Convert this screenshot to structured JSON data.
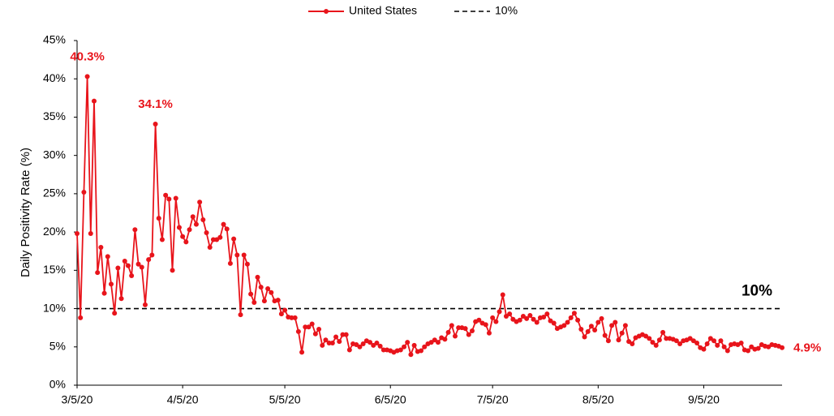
{
  "chart_data": {
    "type": "line",
    "y_label": "Daily Positivity Rate (%)",
    "x": [
      "3/5/20",
      "3/6/20",
      "3/7/20",
      "3/8/20",
      "3/9/20",
      "3/10/20",
      "3/11/20",
      "3/12/20",
      "3/13/20",
      "3/14/20",
      "3/15/20",
      "3/16/20",
      "3/17/20",
      "3/18/20",
      "3/19/20",
      "3/20/20",
      "3/21/20",
      "3/22/20",
      "3/23/20",
      "3/24/20",
      "3/25/20",
      "3/26/20",
      "3/27/20",
      "3/28/20",
      "3/29/20",
      "3/30/20",
      "3/31/20",
      "4/1/20",
      "4/2/20",
      "4/3/20",
      "4/4/20",
      "4/5/20",
      "4/6/20",
      "4/7/20",
      "4/8/20",
      "4/9/20",
      "4/10/20",
      "4/11/20",
      "4/12/20",
      "4/13/20",
      "4/14/20",
      "4/15/20",
      "4/16/20",
      "4/17/20",
      "4/18/20",
      "4/19/20",
      "4/20/20",
      "4/21/20",
      "4/22/20",
      "4/23/20",
      "4/24/20",
      "4/25/20",
      "4/26/20",
      "4/27/20",
      "4/28/20",
      "4/29/20",
      "4/30/20",
      "5/1/20",
      "5/2/20",
      "5/3/20",
      "5/4/20",
      "5/5/20",
      "5/6/20",
      "5/7/20",
      "5/8/20",
      "5/9/20",
      "5/10/20",
      "5/11/20",
      "5/12/20",
      "5/13/20",
      "5/14/20",
      "5/15/20",
      "5/16/20",
      "5/17/20",
      "5/18/20",
      "5/19/20",
      "5/20/20",
      "5/21/20",
      "5/22/20",
      "5/23/20",
      "5/24/20",
      "5/25/20",
      "5/26/20",
      "5/27/20",
      "5/28/20",
      "5/29/20",
      "5/30/20",
      "5/31/20",
      "6/1/20",
      "6/2/20",
      "6/3/20",
      "6/4/20",
      "6/5/20",
      "6/6/20",
      "6/7/20",
      "6/8/20",
      "6/9/20",
      "6/10/20",
      "6/11/20",
      "6/12/20",
      "6/13/20",
      "6/14/20",
      "6/15/20",
      "6/16/20",
      "6/17/20",
      "6/18/20",
      "6/19/20",
      "6/20/20",
      "6/21/20",
      "6/22/20",
      "6/23/20",
      "6/24/20",
      "6/25/20",
      "6/26/20",
      "6/27/20",
      "6/28/20",
      "6/29/20",
      "6/30/20",
      "7/1/20",
      "7/2/20",
      "7/3/20",
      "7/4/20",
      "7/5/20",
      "7/6/20",
      "7/7/20",
      "7/8/20",
      "7/9/20",
      "7/10/20",
      "7/11/20",
      "7/12/20",
      "7/13/20",
      "7/14/20",
      "7/15/20",
      "7/16/20",
      "7/17/20",
      "7/18/20",
      "7/19/20",
      "7/20/20",
      "7/21/20",
      "7/22/20",
      "7/23/20",
      "7/24/20",
      "7/25/20",
      "7/26/20",
      "7/27/20",
      "7/28/20",
      "7/29/20",
      "7/30/20",
      "7/31/20",
      "8/1/20",
      "8/2/20",
      "8/3/20",
      "8/4/20",
      "8/5/20",
      "8/6/20",
      "8/7/20",
      "8/8/20",
      "8/9/20",
      "8/10/20",
      "8/11/20",
      "8/12/20",
      "8/13/20",
      "8/14/20",
      "8/15/20",
      "8/16/20",
      "8/17/20",
      "8/18/20",
      "8/19/20",
      "8/20/20",
      "8/21/20",
      "8/22/20",
      "8/23/20",
      "8/24/20",
      "8/25/20",
      "8/26/20",
      "8/27/20",
      "8/28/20",
      "8/29/20",
      "8/30/20",
      "8/31/20",
      "9/1/20",
      "9/2/20",
      "9/3/20",
      "9/4/20",
      "9/5/20",
      "9/6/20",
      "9/7/20",
      "9/8/20",
      "9/9/20",
      "9/10/20",
      "9/11/20",
      "9/12/20",
      "9/13/20",
      "9/14/20",
      "9/15/20",
      "9/16/20",
      "9/17/20",
      "9/18/20",
      "9/19/20",
      "9/20/20",
      "9/21/20",
      "9/22/20",
      "9/23/20",
      "9/24/20",
      "9/25/20",
      "9/26/20",
      "9/27/20",
      "9/28/20"
    ],
    "series": [
      {
        "name": "United States",
        "color": "#e8141b",
        "values": [
          19.8,
          8.8,
          25.2,
          40.3,
          19.8,
          37.1,
          14.7,
          18.0,
          12.0,
          16.8,
          13.2,
          9.4,
          15.3,
          11.3,
          16.2,
          15.6,
          14.3,
          20.3,
          15.8,
          15.4,
          10.5,
          16.4,
          17.0,
          34.1,
          21.8,
          19.0,
          24.8,
          24.3,
          15.0,
          24.4,
          20.6,
          19.4,
          18.7,
          20.3,
          22.0,
          21.0,
          23.9,
          21.6,
          19.9,
          18.0,
          19.0,
          19.0,
          19.3,
          21.0,
          20.4,
          15.9,
          19.1,
          17.0,
          9.2,
          17.0,
          15.8,
          11.9,
          10.8,
          14.1,
          12.8,
          11.0,
          12.6,
          12.1,
          11.0,
          11.1,
          9.3,
          9.8,
          8.9,
          8.8,
          8.8,
          7.0,
          4.3,
          7.6,
          7.6,
          8.0,
          6.7,
          7.3,
          5.2,
          5.9,
          5.5,
          5.5,
          6.3,
          5.7,
          6.6,
          6.6,
          4.6,
          5.4,
          5.3,
          5.0,
          5.4,
          5.8,
          5.6,
          5.2,
          5.5,
          5.1,
          4.6,
          4.6,
          4.5,
          4.3,
          4.5,
          4.6,
          5.0,
          5.6,
          4.0,
          5.2,
          4.4,
          4.5,
          5.0,
          5.4,
          5.6,
          5.9,
          5.6,
          6.2,
          6.0,
          6.9,
          7.8,
          6.4,
          7.5,
          7.5,
          7.4,
          6.6,
          7.1,
          8.3,
          8.5,
          8.1,
          7.9,
          6.8,
          8.8,
          8.3,
          9.6,
          11.8,
          9.0,
          9.3,
          8.6,
          8.3,
          8.5,
          9.0,
          8.7,
          9.1,
          8.6,
          8.2,
          8.8,
          8.9,
          9.3,
          8.4,
          8.1,
          7.4,
          7.6,
          7.8,
          8.2,
          8.8,
          9.4,
          8.5,
          7.3,
          6.3,
          7.0,
          7.7,
          7.2,
          8.2,
          8.7,
          6.5,
          5.8,
          7.8,
          8.2,
          5.9,
          6.8,
          7.8,
          5.7,
          5.4,
          6.2,
          6.4,
          6.6,
          6.4,
          6.1,
          5.6,
          5.2,
          5.9,
          6.9,
          6.1,
          6.1,
          6.0,
          5.8,
          5.4,
          5.8,
          5.9,
          6.1,
          5.8,
          5.5,
          4.9,
          4.7,
          5.4,
          6.1,
          5.8,
          5.2,
          5.8,
          5.0,
          4.5,
          5.3,
          5.4,
          5.3,
          5.5,
          4.6,
          4.5,
          5.0,
          4.7,
          4.8,
          5.3,
          5.1,
          5.0,
          5.3,
          5.2,
          5.1,
          4.9
        ]
      }
    ],
    "annotations": [
      {
        "x": "3/8/20",
        "label": "40.3%"
      },
      {
        "x": "3/28/20",
        "label": "34.1%"
      },
      {
        "x": "9/28/20",
        "label": "4.9%"
      }
    ],
    "reference_line": {
      "name": "10%",
      "value": 10,
      "label": "10%",
      "color": "#000000"
    },
    "xlim": [
      "3/5/20",
      "9/28/20"
    ],
    "xticks": [
      "3/5/20",
      "4/5/20",
      "5/5/20",
      "6/5/20",
      "7/5/20",
      "8/5/20",
      "9/5/20"
    ],
    "ylim": [
      0,
      45
    ],
    "yticks": [
      {
        "value": 0,
        "label": "0%"
      },
      {
        "value": 5,
        "label": "5%"
      },
      {
        "value": 10,
        "label": "10%"
      },
      {
        "value": 15,
        "label": "15%"
      },
      {
        "value": 20,
        "label": "20%"
      },
      {
        "value": 25,
        "label": "25%"
      },
      {
        "value": 30,
        "label": "30%"
      },
      {
        "value": 35,
        "label": "35%"
      },
      {
        "value": 40,
        "label": "40%"
      },
      {
        "value": 45,
        "label": "45%"
      }
    ],
    "grid": false,
    "legend": "top"
  }
}
